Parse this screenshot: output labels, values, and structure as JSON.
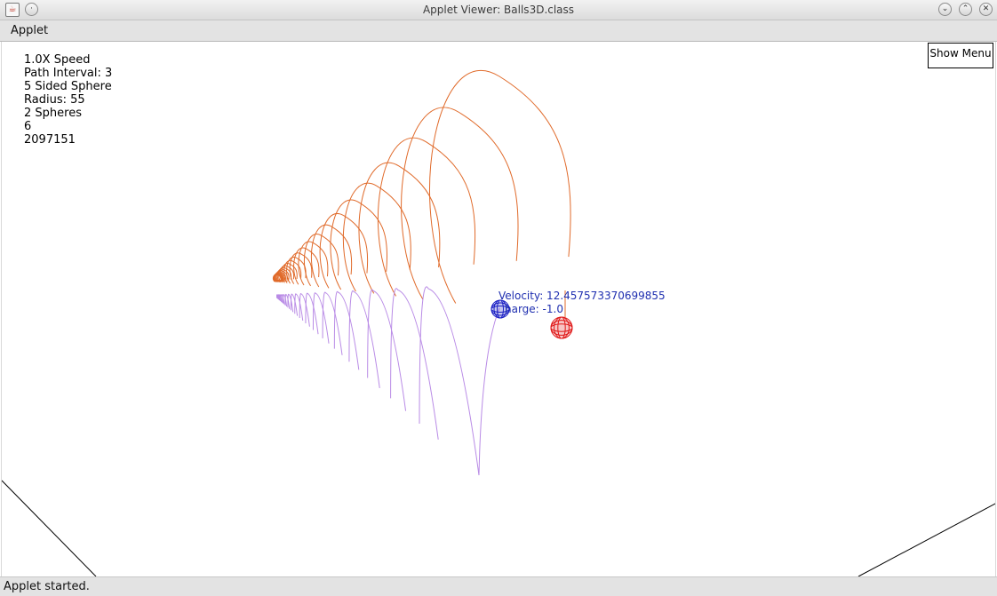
{
  "window": {
    "title": "Applet Viewer: Balls3D.class",
    "app_icon": "java-cup-icon",
    "controls": [
      "minimize-icon",
      "maximize-icon",
      "close-icon"
    ],
    "control_glyphs": {
      "min": "⌄",
      "max": "⌃",
      "close": "✕",
      "pin": "·"
    }
  },
  "menubar": {
    "items": [
      {
        "label": "Applet"
      }
    ]
  },
  "canvas": {
    "info_lines": [
      "1.0X Speed",
      "Path Interval: 3",
      "5 Sided Sphere",
      "Radius: 55",
      "2 Spheres",
      "6",
      "2097151"
    ],
    "show_menu_label": "Show Menu",
    "selected_sphere": {
      "velocity_label": "Velocity: 12.457573370699855",
      "charge_label": "harge: -1.0"
    },
    "colors": {
      "orange_path": "#e06a2a",
      "purple_path": "#b98be6",
      "blue_sphere": "#1a1fc4",
      "red_sphere": "#e01818",
      "label": "#1f2fb0"
    }
  },
  "statusbar": {
    "text": "Applet started."
  }
}
